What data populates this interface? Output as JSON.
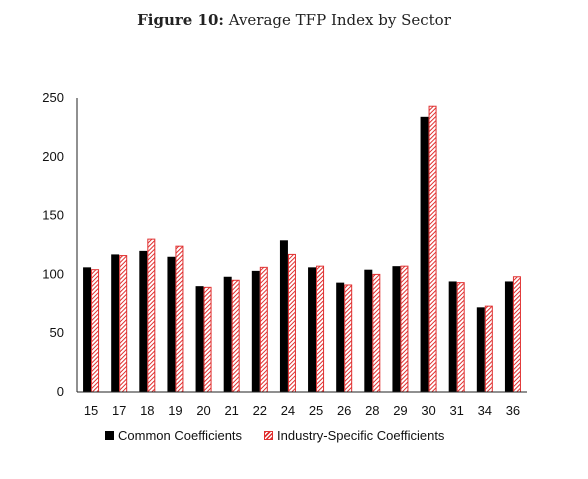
{
  "title": {
    "label": "Figure 10:",
    "text": "Average TFP Index by Sector"
  },
  "colors": {
    "common": "#000000",
    "industry": "#e03030"
  },
  "chart_data": {
    "type": "bar",
    "categories": [
      "15",
      "17",
      "18",
      "19",
      "20",
      "21",
      "22",
      "24",
      "25",
      "26",
      "28",
      "29",
      "30",
      "31",
      "34",
      "36"
    ],
    "series": [
      {
        "name": "Common Coefficients",
        "values": [
          106,
          117,
          120,
          115,
          90,
          98,
          103,
          129,
          106,
          93,
          104,
          107,
          234,
          94,
          72,
          94
        ]
      },
      {
        "name": "Industry-Specific Coefficients",
        "values": [
          104,
          116,
          130,
          124,
          89,
          95,
          106,
          117,
          107,
          91,
          100,
          107,
          243,
          93,
          73,
          98
        ]
      }
    ],
    "ylim": [
      0,
      250
    ],
    "yticks": [
      0,
      50,
      100,
      150,
      200,
      250
    ],
    "grid": false,
    "legend": "bottom"
  }
}
